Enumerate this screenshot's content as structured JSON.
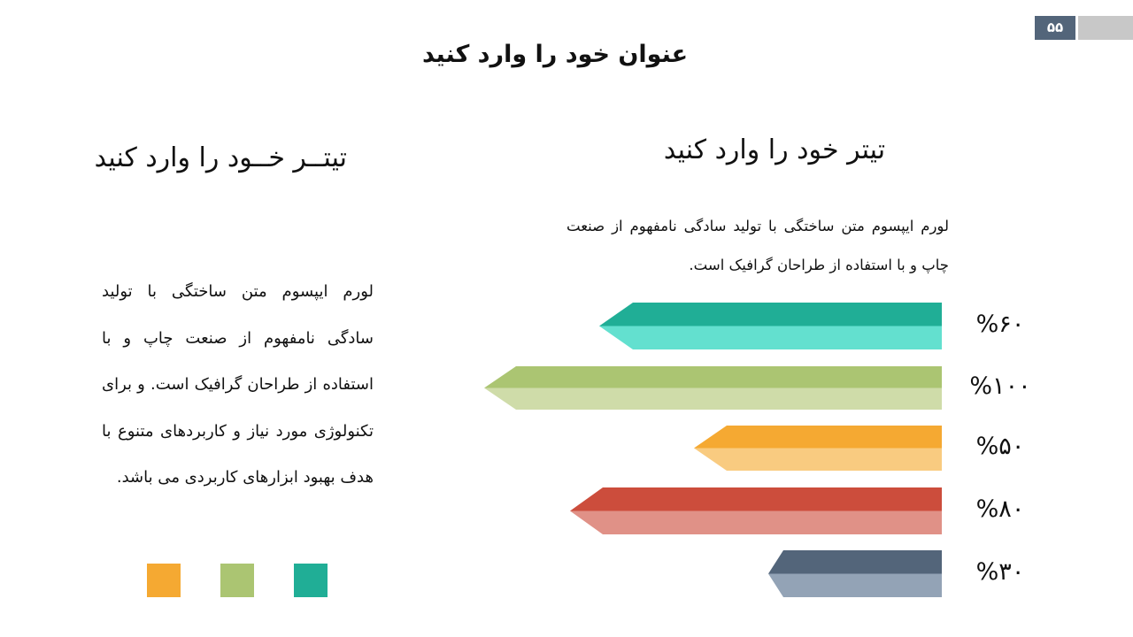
{
  "page_number": "۵۵",
  "colors": {
    "badge": "#53657a",
    "badge_bar": "#c8c8c8"
  },
  "main_title": "عنوان خود را وارد کنید",
  "left": {
    "title": "تیتــر خــود را وارد کنید",
    "text": "لورم ایپسوم متن ساختگی با تولید سادگی نامفهوم از صنعت چاپ و با استفاده از طراحان گرافیک است. و برای تکنولوژی مورد نیاز و کاربردهای متنوع با هدف بهبود ابزارهای کاربردی می باشد.",
    "swatches": [
      "#f5a932",
      "#abc572",
      "#20ae96"
    ]
  },
  "right": {
    "title": "تیتر خود را وارد کنید",
    "text": "لورم ایپسوم متن ساختگی با تولید سادگی نامفهوم از صنعت چاپ و با استفاده از طراحان گرافیک است."
  },
  "chart_data": {
    "type": "bar",
    "orientation": "horizontal",
    "values": [
      60,
      100,
      50,
      80,
      30
    ],
    "labels": [
      "%۶۰",
      "%۱۰۰",
      "%۵۰",
      "%۸۰",
      "%۳۰"
    ],
    "colors": [
      [
        "#20ae96",
        "#63e0cf"
      ],
      [
        "#abc572",
        "#cfdca9"
      ],
      [
        "#f5a932",
        "#f9cb80"
      ],
      [
        "#cc4d3c",
        "#e09187"
      ],
      [
        "#53657a",
        "#93a3b6"
      ]
    ]
  }
}
